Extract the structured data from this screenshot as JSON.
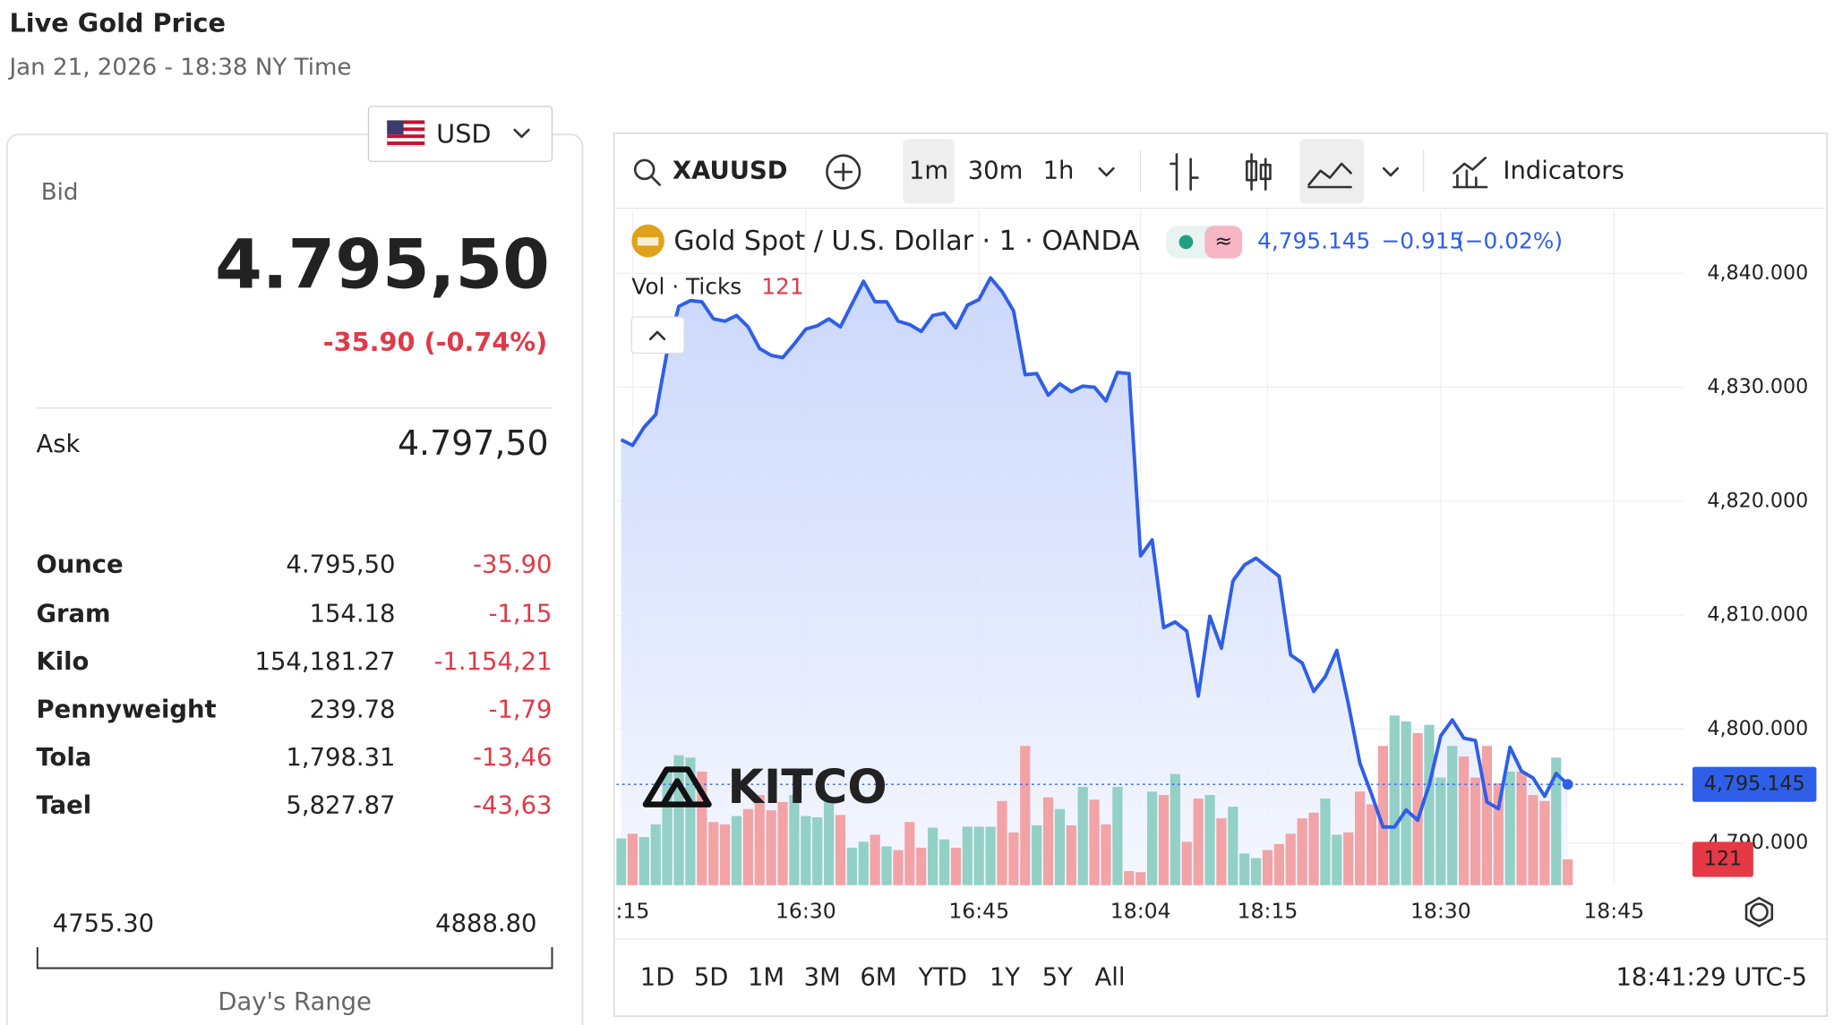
{
  "header": {
    "title": "Live Gold Price",
    "subtitle": "Jan 21, 2026 - 18:38 NY Time"
  },
  "currency": "USD",
  "bid": {
    "label": "Bid",
    "price": "4.795,50",
    "change": "-35.90 (-0.74%)"
  },
  "ask": {
    "label": "Ask",
    "price": "4.797,50"
  },
  "units": {
    "rows": [
      [
        "Ounce",
        "4.795,50",
        "-35.90"
      ],
      [
        "Gram",
        "154.18",
        "-1,15"
      ],
      [
        "Kilo",
        "154,181.27",
        "-1.154,21"
      ],
      [
        "Pennyweight",
        "239.78",
        "-1,79"
      ],
      [
        "Tola",
        "1,798.31",
        "-13,46"
      ],
      [
        "Tael",
        "5,827.87",
        "-43,63"
      ]
    ]
  },
  "day_range": {
    "low": "4755.30",
    "high": "4888.80",
    "label": "Day's Range"
  },
  "toolbar": {
    "symbol": "XAUUSD",
    "intervals": [
      "1m",
      "30m",
      "1h"
    ],
    "indicators": "Indicators"
  },
  "watermark": "KITCO",
  "chart_data": {
    "type": "line",
    "title": "Gold Spot / U.S. Dollar · 1 · OANDA",
    "legend_price": "4,795.145",
    "legend_change": "−0.915",
    "legend_change_pct": "(−0.02%)",
    "last_label": "4,795.145",
    "color": "#2f5ee8",
    "area": true,
    "categories": [
      null,
      ":15",
      null,
      null,
      null,
      null,
      null,
      null,
      null,
      null,
      null,
      null,
      null,
      null,
      null,
      null,
      "16:30",
      null,
      null,
      null,
      null,
      null,
      null,
      null,
      null,
      null,
      null,
      null,
      null,
      null,
      null,
      "16:45",
      null,
      null,
      null,
      null,
      null,
      null,
      null,
      null,
      null,
      null,
      null,
      null,
      null,
      "18:04",
      null,
      null,
      null,
      null,
      null,
      null,
      null,
      null,
      null,
      null,
      "18:15",
      null,
      null,
      null,
      null,
      null,
      null,
      null,
      null,
      null,
      null,
      null,
      null,
      null,
      null,
      "18:30",
      null,
      null,
      null,
      null,
      null,
      null,
      null,
      null,
      null,
      null,
      null,
      null,
      null,
      null,
      "18:45"
    ],
    "values": [
      4825.4,
      4824.9,
      4826.5,
      4827.6,
      4833.2,
      4837.1,
      4837.6,
      4837.5,
      4836.0,
      4835.8,
      4836.3,
      4835.3,
      4833.4,
      4832.8,
      4832.6,
      4833.8,
      4835.1,
      4835.4,
      4836.0,
      4835.3,
      4837.3,
      4839.3,
      4837.5,
      4837.5,
      4835.8,
      4835.5,
      4834.9,
      4836.3,
      4836.5,
      4835.2,
      4837.2,
      4837.7,
      4839.6,
      4838.4,
      4836.7,
      4831.1,
      4831.2,
      4829.3,
      4830.3,
      4829.6,
      4830.1,
      4830.0,
      4828.8,
      4831.3,
      4831.2,
      4815.2,
      4816.6,
      4808.9,
      4809.4,
      4808.6,
      4802.9,
      4809.9,
      4807.1,
      4813.0,
      4814.4,
      4815.0,
      4814.2,
      4813.4,
      4806.5,
      4805.8,
      4803.3,
      4804.6,
      4806.9,
      4802.2,
      4797.0,
      4794.3,
      4791.4,
      4791.4,
      4792.9,
      4792.0,
      4795.1,
      4799.4,
      4800.8,
      4799.2,
      4799.0,
      4793.6,
      4793.0,
      4798.4,
      4796.3,
      4795.7,
      4794.1,
      4796.1,
      4795.145,
      null,
      null,
      null,
      null
    ],
    "volume": {
      "title": "Vol · Ticks",
      "up_color": "#93d0c6",
      "down_color": "#f2a3a6",
      "values": [
        220,
        242,
        226,
        286,
        534,
        611,
        600,
        534,
        297,
        286,
        325,
        358,
        424,
        352,
        391,
        424,
        325,
        319,
        396,
        330,
        176,
        204,
        237,
        182,
        165,
        297,
        176,
        270,
        215,
        176,
        275,
        275,
        275,
        396,
        248,
        655,
        281,
        413,
        358,
        281,
        462,
        402,
        286,
        462,
        66,
        61,
        440,
        424,
        523,
        204,
        407,
        424,
        314,
        369,
        149,
        127,
        165,
        193,
        242,
        314,
        341,
        407,
        237,
        248,
        440,
        380,
        655,
        798,
        770,
        715,
        754,
        506,
        655,
        605,
        506,
        655,
        479,
        534,
        534,
        424,
        396,
        600,
        121,
        null,
        null,
        null,
        null
      ]
    },
    "ylim": [
      4786.3,
      4845.0
    ],
    "yticks": [
      {
        "value": 4790,
        "label": "4,790.000"
      },
      {
        "value": 4800,
        "label": "4,800.000"
      },
      {
        "value": 4810,
        "label": "4,810.000"
      },
      {
        "value": 4820,
        "label": "4,820.000"
      },
      {
        "value": 4830,
        "label": "4,830.000"
      },
      {
        "value": 4840,
        "label": "4,840.000"
      }
    ],
    "grid": true
  },
  "footer": {
    "ranges": [
      "1D",
      "5D",
      "1M",
      "3M",
      "6M",
      "YTD",
      "1Y",
      "5Y",
      "All"
    ],
    "clock": "18:41:29 UTC-5"
  }
}
